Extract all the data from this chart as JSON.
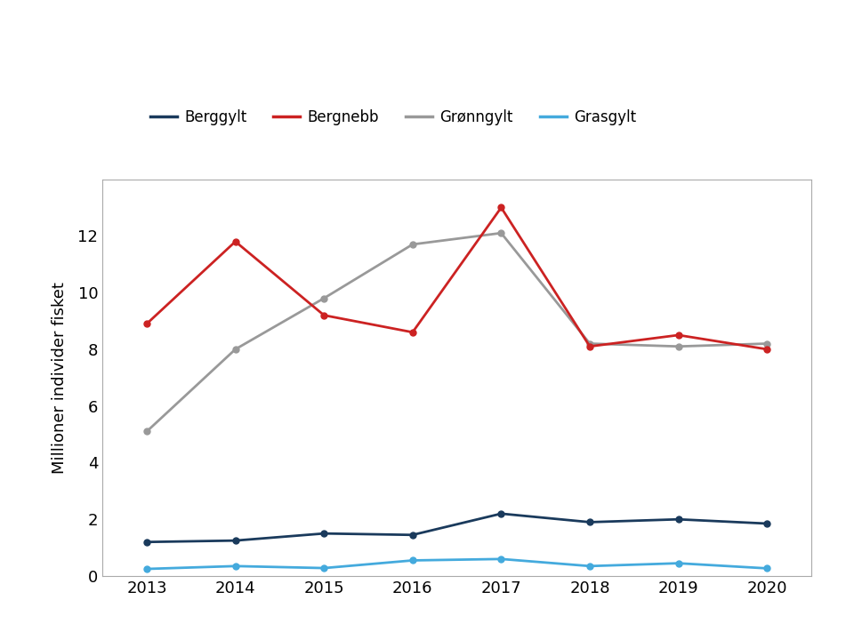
{
  "years": [
    2013,
    2014,
    2015,
    2016,
    2017,
    2018,
    2019,
    2020
  ],
  "berggylt": [
    1.2,
    1.25,
    1.5,
    1.45,
    2.2,
    1.9,
    2.0,
    1.85
  ],
  "bergnebb": [
    8.9,
    11.8,
    9.2,
    8.6,
    13.0,
    8.1,
    8.5,
    8.0
  ],
  "gronngylt": [
    5.1,
    8.0,
    9.8,
    11.7,
    12.1,
    8.2,
    8.1,
    8.2
  ],
  "grasgylt": [
    0.25,
    0.35,
    0.28,
    0.55,
    0.6,
    0.35,
    0.45,
    0.27
  ],
  "colors": {
    "berggylt": "#1a3a5c",
    "bergnebb": "#cc2222",
    "gronngylt": "#999999",
    "grasgylt": "#44aadd"
  },
  "legend_labels": [
    "Berggylt",
    "Bergnebb",
    "Grønngylt",
    "Grasgylt"
  ],
  "ylabel": "Millioner individer fisket",
  "ylim": [
    0,
    14
  ],
  "yticks": [
    0,
    2,
    4,
    6,
    8,
    10,
    12
  ],
  "background_color": "#ffffff",
  "marker": "o",
  "marker_size": 5,
  "linewidth": 2.0
}
